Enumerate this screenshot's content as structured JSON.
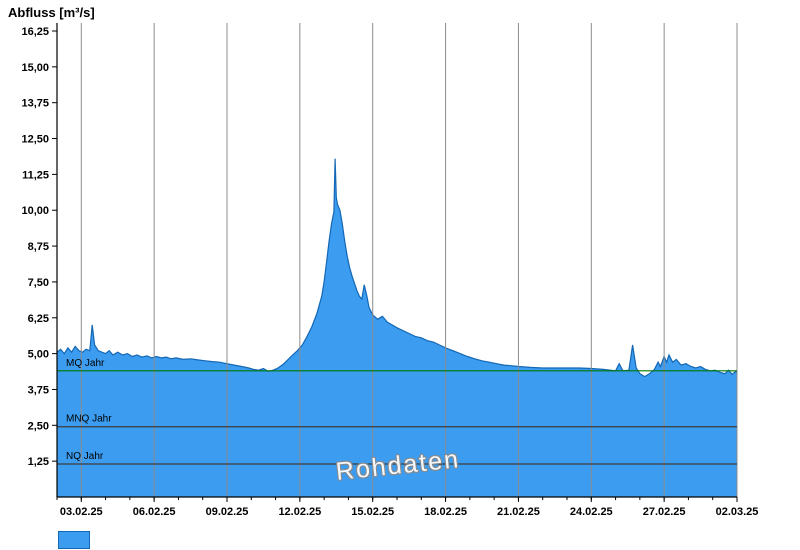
{
  "chart_data": {
    "type": "area",
    "title": "Abfluss [m³/s]",
    "watermark": "Rohdaten",
    "xlim": [
      0,
      28
    ],
    "ylim": [
      0,
      16.25
    ],
    "grid": "vertical-only",
    "legend_position": "bottom-left-swatch-only",
    "x_ticks": [
      {
        "t": 1,
        "label": "03.02.25"
      },
      {
        "t": 4,
        "label": "06.02.25"
      },
      {
        "t": 7,
        "label": "09.02.25"
      },
      {
        "t": 10,
        "label": "12.02.25"
      },
      {
        "t": 13,
        "label": "15.02.25"
      },
      {
        "t": 16,
        "label": "18.02.25"
      },
      {
        "t": 19,
        "label": "21.02.25"
      },
      {
        "t": 22,
        "label": "24.02.25"
      },
      {
        "t": 25,
        "label": "27.02.25"
      },
      {
        "t": 28,
        "label": "02.03.25"
      }
    ],
    "y_ticks": [
      {
        "v": 1.25,
        "label": "1,25"
      },
      {
        "v": 2.5,
        "label": "2,50"
      },
      {
        "v": 3.75,
        "label": "3,75"
      },
      {
        "v": 5.0,
        "label": "5,00"
      },
      {
        "v": 6.25,
        "label": "6,25"
      },
      {
        "v": 7.5,
        "label": "7,50"
      },
      {
        "v": 8.75,
        "label": "8,75"
      },
      {
        "v": 10.0,
        "label": "10,00"
      },
      {
        "v": 11.25,
        "label": "11,25"
      },
      {
        "v": 12.5,
        "label": "12,50"
      },
      {
        "v": 13.75,
        "label": "13,75"
      },
      {
        "v": 15.0,
        "label": "15,00"
      },
      {
        "v": 16.25,
        "label": "16,25"
      }
    ],
    "ref_lines": [
      {
        "label": "MQ Jahr",
        "value": 4.4,
        "color": "#007A00"
      },
      {
        "label": "MNQ Jahr",
        "value": 2.45,
        "color": "#3C3C3C"
      },
      {
        "label": "NQ Jahr",
        "value": 1.15,
        "color": "#3C3C3C"
      }
    ],
    "colors": {
      "gridline": "#8C8C8C",
      "axis": "#000000"
    },
    "series": [
      {
        "name": "Abfluss [m³/s]",
        "fill": "#3B9CF0",
        "stroke": "#1467B4",
        "points": [
          [
            0,
            5.05
          ],
          [
            0.15,
            5.15
          ],
          [
            0.3,
            5.0
          ],
          [
            0.45,
            5.2
          ],
          [
            0.6,
            5.05
          ],
          [
            0.75,
            5.25
          ],
          [
            0.9,
            5.1
          ],
          [
            1.05,
            5.05
          ],
          [
            1.2,
            5.15
          ],
          [
            1.35,
            5.1
          ],
          [
            1.45,
            6.0
          ],
          [
            1.55,
            5.3
          ],
          [
            1.7,
            5.1
          ],
          [
            1.85,
            5.05
          ],
          [
            2.0,
            5.0
          ],
          [
            2.15,
            5.1
          ],
          [
            2.3,
            4.95
          ],
          [
            2.5,
            5.05
          ],
          [
            2.7,
            4.95
          ],
          [
            2.9,
            5.0
          ],
          [
            3.1,
            4.9
          ],
          [
            3.3,
            4.95
          ],
          [
            3.5,
            4.88
          ],
          [
            3.7,
            4.92
          ],
          [
            3.9,
            4.85
          ],
          [
            4.1,
            4.9
          ],
          [
            4.3,
            4.85
          ],
          [
            4.5,
            4.88
          ],
          [
            4.7,
            4.82
          ],
          [
            4.9,
            4.85
          ],
          [
            5.2,
            4.8
          ],
          [
            5.5,
            4.82
          ],
          [
            5.8,
            4.78
          ],
          [
            6.1,
            4.75
          ],
          [
            6.4,
            4.72
          ],
          [
            6.7,
            4.7
          ],
          [
            7.0,
            4.65
          ],
          [
            7.3,
            4.6
          ],
          [
            7.6,
            4.55
          ],
          [
            7.9,
            4.5
          ],
          [
            8.1,
            4.45
          ],
          [
            8.3,
            4.42
          ],
          [
            8.5,
            4.48
          ],
          [
            8.7,
            4.38
          ],
          [
            8.9,
            4.42
          ],
          [
            9.1,
            4.5
          ],
          [
            9.3,
            4.62
          ],
          [
            9.5,
            4.78
          ],
          [
            9.7,
            4.95
          ],
          [
            9.9,
            5.1
          ],
          [
            10.1,
            5.3
          ],
          [
            10.3,
            5.6
          ],
          [
            10.5,
            5.95
          ],
          [
            10.7,
            6.4
          ],
          [
            10.9,
            7.0
          ],
          [
            11.0,
            7.5
          ],
          [
            11.1,
            8.2
          ],
          [
            11.2,
            8.9
          ],
          [
            11.3,
            9.5
          ],
          [
            11.4,
            9.95
          ],
          [
            11.45,
            11.8
          ],
          [
            11.5,
            10.45
          ],
          [
            11.55,
            10.2
          ],
          [
            11.65,
            10.0
          ],
          [
            11.75,
            9.5
          ],
          [
            11.85,
            8.9
          ],
          [
            11.95,
            8.4
          ],
          [
            12.05,
            8.0
          ],
          [
            12.15,
            7.7
          ],
          [
            12.25,
            7.45
          ],
          [
            12.35,
            7.2
          ],
          [
            12.45,
            7.0
          ],
          [
            12.55,
            6.9
          ],
          [
            12.65,
            7.4
          ],
          [
            12.75,
            7.05
          ],
          [
            12.85,
            6.6
          ],
          [
            13.0,
            6.35
          ],
          [
            13.2,
            6.2
          ],
          [
            13.4,
            6.3
          ],
          [
            13.6,
            6.1
          ],
          [
            13.8,
            6.0
          ],
          [
            14.0,
            5.9
          ],
          [
            14.25,
            5.8
          ],
          [
            14.5,
            5.7
          ],
          [
            14.75,
            5.6
          ],
          [
            15.0,
            5.55
          ],
          [
            15.25,
            5.45
          ],
          [
            15.5,
            5.4
          ],
          [
            15.75,
            5.3
          ],
          [
            16.0,
            5.2
          ],
          [
            16.3,
            5.1
          ],
          [
            16.6,
            5.0
          ],
          [
            16.9,
            4.9
          ],
          [
            17.2,
            4.82
          ],
          [
            17.5,
            4.75
          ],
          [
            17.8,
            4.7
          ],
          [
            18.1,
            4.65
          ],
          [
            18.4,
            4.6
          ],
          [
            18.7,
            4.58
          ],
          [
            19.0,
            4.55
          ],
          [
            19.5,
            4.52
          ],
          [
            20.0,
            4.5
          ],
          [
            20.5,
            4.5
          ],
          [
            21.0,
            4.5
          ],
          [
            21.5,
            4.5
          ],
          [
            22.0,
            4.48
          ],
          [
            22.5,
            4.45
          ],
          [
            23.0,
            4.4
          ],
          [
            23.15,
            4.65
          ],
          [
            23.3,
            4.4
          ],
          [
            23.55,
            4.42
          ],
          [
            23.7,
            5.3
          ],
          [
            23.85,
            4.5
          ],
          [
            24.0,
            4.3
          ],
          [
            24.2,
            4.2
          ],
          [
            24.4,
            4.3
          ],
          [
            24.6,
            4.45
          ],
          [
            24.75,
            4.7
          ],
          [
            24.85,
            4.55
          ],
          [
            25.0,
            4.9
          ],
          [
            25.1,
            4.7
          ],
          [
            25.2,
            4.95
          ],
          [
            25.35,
            4.7
          ],
          [
            25.5,
            4.8
          ],
          [
            25.7,
            4.6
          ],
          [
            25.9,
            4.65
          ],
          [
            26.1,
            4.55
          ],
          [
            26.3,
            4.5
          ],
          [
            26.5,
            4.55
          ],
          [
            26.7,
            4.45
          ],
          [
            26.9,
            4.4
          ],
          [
            27.1,
            4.42
          ],
          [
            27.3,
            4.35
          ],
          [
            27.5,
            4.3
          ],
          [
            27.65,
            4.42
          ],
          [
            27.8,
            4.28
          ],
          [
            27.95,
            4.38
          ],
          [
            28,
            4.32
          ]
        ]
      }
    ]
  }
}
